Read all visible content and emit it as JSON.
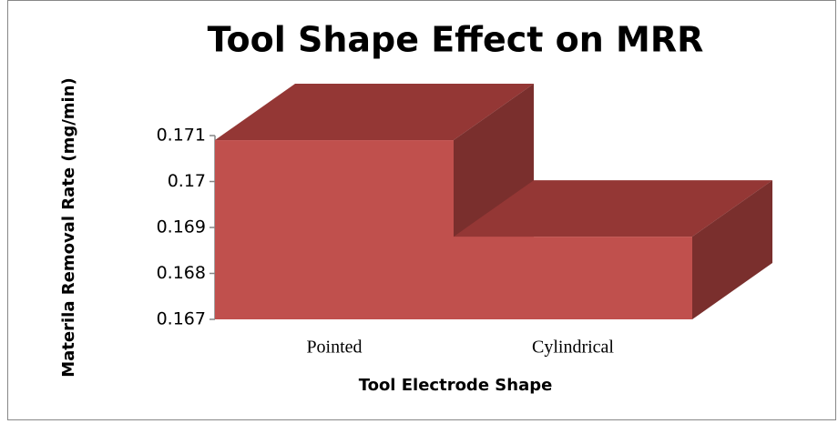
{
  "chart_data": {
    "type": "bar3d",
    "title": "Tool Shape Effect on MRR",
    "x_label": "Tool Electrode Shape",
    "y_label": "Materila Removal Rate (mg/min)",
    "categories": [
      "Pointed",
      "Cylindrical"
    ],
    "values": [
      0.1709,
      0.1688
    ],
    "color": "#c0504d",
    "ylim": [
      0.167,
      0.171
    ],
    "yticks": [
      0.167,
      0.168,
      0.169,
      0.17,
      0.171
    ]
  }
}
